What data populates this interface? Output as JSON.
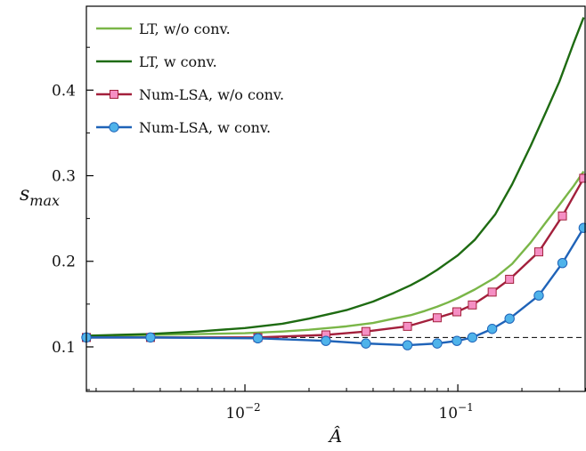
{
  "chart_data": {
    "type": "line",
    "xscale": "log",
    "xlim": [
      0.0018,
      0.4
    ],
    "ylim": [
      0.048,
      0.498
    ],
    "xlabel": "Â",
    "ylabel_main": "s",
    "ylabel_sub": "max",
    "x_ticks": [
      {
        "value": 0.01,
        "base": "10",
        "exp": "−2"
      },
      {
        "value": 0.1,
        "base": "10",
        "exp": "−1"
      }
    ],
    "y_ticks": [
      {
        "value": 0.1,
        "label": "0.1"
      },
      {
        "value": 0.2,
        "label": "0.2"
      },
      {
        "value": 0.3,
        "label": "0.3"
      },
      {
        "value": 0.4,
        "label": "0.4"
      }
    ],
    "reference_line": {
      "y": 0.111,
      "style": "dashed",
      "color": "#000000"
    },
    "legend_position": "top-left",
    "series": [
      {
        "name": "LT, w/o conv.",
        "color": "#7ab648",
        "marker": "none",
        "x": [
          0.0018,
          0.0035,
          0.006,
          0.01,
          0.015,
          0.02,
          0.03,
          0.04,
          0.05,
          0.06,
          0.07,
          0.08,
          0.09,
          0.1,
          0.12,
          0.15,
          0.18,
          0.22,
          0.26,
          0.3,
          0.35,
          0.39
        ],
        "y": [
          0.113,
          0.114,
          0.115,
          0.116,
          0.118,
          0.12,
          0.124,
          0.128,
          0.133,
          0.137,
          0.142,
          0.147,
          0.152,
          0.157,
          0.167,
          0.181,
          0.197,
          0.222,
          0.246,
          0.266,
          0.288,
          0.305
        ]
      },
      {
        "name": "LT, w conv.",
        "color": "#1e6b12",
        "marker": "none",
        "x": [
          0.0018,
          0.0035,
          0.006,
          0.01,
          0.015,
          0.02,
          0.03,
          0.04,
          0.05,
          0.06,
          0.07,
          0.08,
          0.09,
          0.1,
          0.12,
          0.15,
          0.18,
          0.22,
          0.26,
          0.3,
          0.35,
          0.39
        ],
        "y": [
          0.113,
          0.115,
          0.118,
          0.122,
          0.127,
          0.133,
          0.143,
          0.153,
          0.163,
          0.172,
          0.181,
          0.19,
          0.199,
          0.207,
          0.225,
          0.255,
          0.29,
          0.335,
          0.375,
          0.41,
          0.455,
          0.485
        ]
      },
      {
        "name": "Num-LSA, w/o conv.",
        "color": "#a3203c",
        "marker": "square",
        "marker_fill": "#f58fc4",
        "x": [
          0.0018,
          0.0036,
          0.0115,
          0.024,
          0.037,
          0.058,
          0.08,
          0.099,
          0.117,
          0.145,
          0.175,
          0.24,
          0.31,
          0.39
        ],
        "y": [
          0.111,
          0.111,
          0.111,
          0.114,
          0.118,
          0.124,
          0.134,
          0.141,
          0.149,
          0.164,
          0.179,
          0.211,
          0.253,
          0.297
        ]
      },
      {
        "name": "Num-LSA, w conv.",
        "color": "#1f63b8",
        "marker": "circle",
        "marker_fill": "#4fb3ea",
        "x": [
          0.0018,
          0.0036,
          0.0115,
          0.024,
          0.037,
          0.058,
          0.08,
          0.099,
          0.117,
          0.145,
          0.175,
          0.24,
          0.31,
          0.39
        ],
        "y": [
          0.111,
          0.111,
          0.11,
          0.107,
          0.104,
          0.102,
          0.104,
          0.107,
          0.111,
          0.121,
          0.133,
          0.16,
          0.198,
          0.239
        ]
      }
    ]
  }
}
